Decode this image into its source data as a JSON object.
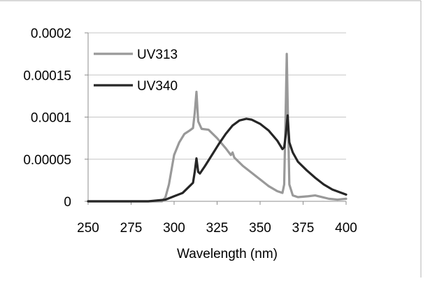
{
  "chart_data": {
    "type": "line",
    "title": "",
    "xlabel": "Wavelength (nm)",
    "ylabel": "",
    "xlim": [
      250,
      400
    ],
    "ylim": [
      0,
      0.0002
    ],
    "x_ticks": [
      "250",
      "275",
      "300",
      "325",
      "350",
      "375",
      "400"
    ],
    "y_ticks": [
      "0",
      "0.00005",
      "0.0001",
      "0.00015",
      "0.0002"
    ],
    "grid": "horizontal",
    "legend": "top-left",
    "series": [
      {
        "name": "UV313",
        "color": "#999999",
        "points": [
          [
            250,
            0
          ],
          [
            280,
            0
          ],
          [
            293,
            0
          ],
          [
            295,
            5e-06
          ],
          [
            297,
            2e-05
          ],
          [
            300,
            5.5e-05
          ],
          [
            303,
            7e-05
          ],
          [
            306,
            8e-05
          ],
          [
            309,
            8.4e-05
          ],
          [
            311,
            8.7e-05
          ],
          [
            312,
            0.000105
          ],
          [
            313,
            0.00013
          ],
          [
            314,
            9.5e-05
          ],
          [
            316,
            8.6e-05
          ],
          [
            320,
            8.5e-05
          ],
          [
            325,
            7.5e-05
          ],
          [
            330,
            6.3e-05
          ],
          [
            333,
            5.5e-05
          ],
          [
            334,
            5.8e-05
          ],
          [
            335,
            5.2e-05
          ],
          [
            340,
            4.2e-05
          ],
          [
            345,
            3.4e-05
          ],
          [
            350,
            2.6e-05
          ],
          [
            355,
            1.8e-05
          ],
          [
            360,
            1.2e-05
          ],
          [
            363,
            1e-05
          ],
          [
            364,
            2e-05
          ],
          [
            365,
            0.00012
          ],
          [
            365.5,
            0.000175
          ],
          [
            366,
            0.00012
          ],
          [
            367,
            2e-05
          ],
          [
            369,
            7e-06
          ],
          [
            372,
            5e-06
          ],
          [
            378,
            6e-06
          ],
          [
            382,
            7e-06
          ],
          [
            386,
            5e-06
          ],
          [
            390,
            3e-06
          ],
          [
            395,
            2e-06
          ],
          [
            400,
            3e-06
          ]
        ]
      },
      {
        "name": "UV340",
        "color": "#262626",
        "points": [
          [
            250,
            0
          ],
          [
            285,
            0
          ],
          [
            295,
            2e-06
          ],
          [
            300,
            6e-06
          ],
          [
            305,
            1e-05
          ],
          [
            309,
            1.8e-05
          ],
          [
            311,
            2.2e-05
          ],
          [
            312,
            3.5e-05
          ],
          [
            313,
            5.1e-05
          ],
          [
            314,
            3.5e-05
          ],
          [
            315,
            3.3e-05
          ],
          [
            318,
            4.2e-05
          ],
          [
            322,
            5.5e-05
          ],
          [
            326,
            6.8e-05
          ],
          [
            330,
            8e-05
          ],
          [
            334,
            9e-05
          ],
          [
            338,
            9.6e-05
          ],
          [
            342,
            9.8e-05
          ],
          [
            345,
            9.7e-05
          ],
          [
            350,
            9.2e-05
          ],
          [
            355,
            8.4e-05
          ],
          [
            360,
            7.2e-05
          ],
          [
            363,
            6.2e-05
          ],
          [
            364,
            6.4e-05
          ],
          [
            365,
            8e-05
          ],
          [
            366,
            0.000102
          ],
          [
            367,
            7e-05
          ],
          [
            369,
            5.8e-05
          ],
          [
            372,
            4.7e-05
          ],
          [
            377,
            3.7e-05
          ],
          [
            382,
            2.8e-05
          ],
          [
            387,
            2e-05
          ],
          [
            392,
            1.4e-05
          ],
          [
            396,
            1.1e-05
          ],
          [
            400,
            8e-06
          ]
        ]
      }
    ]
  }
}
